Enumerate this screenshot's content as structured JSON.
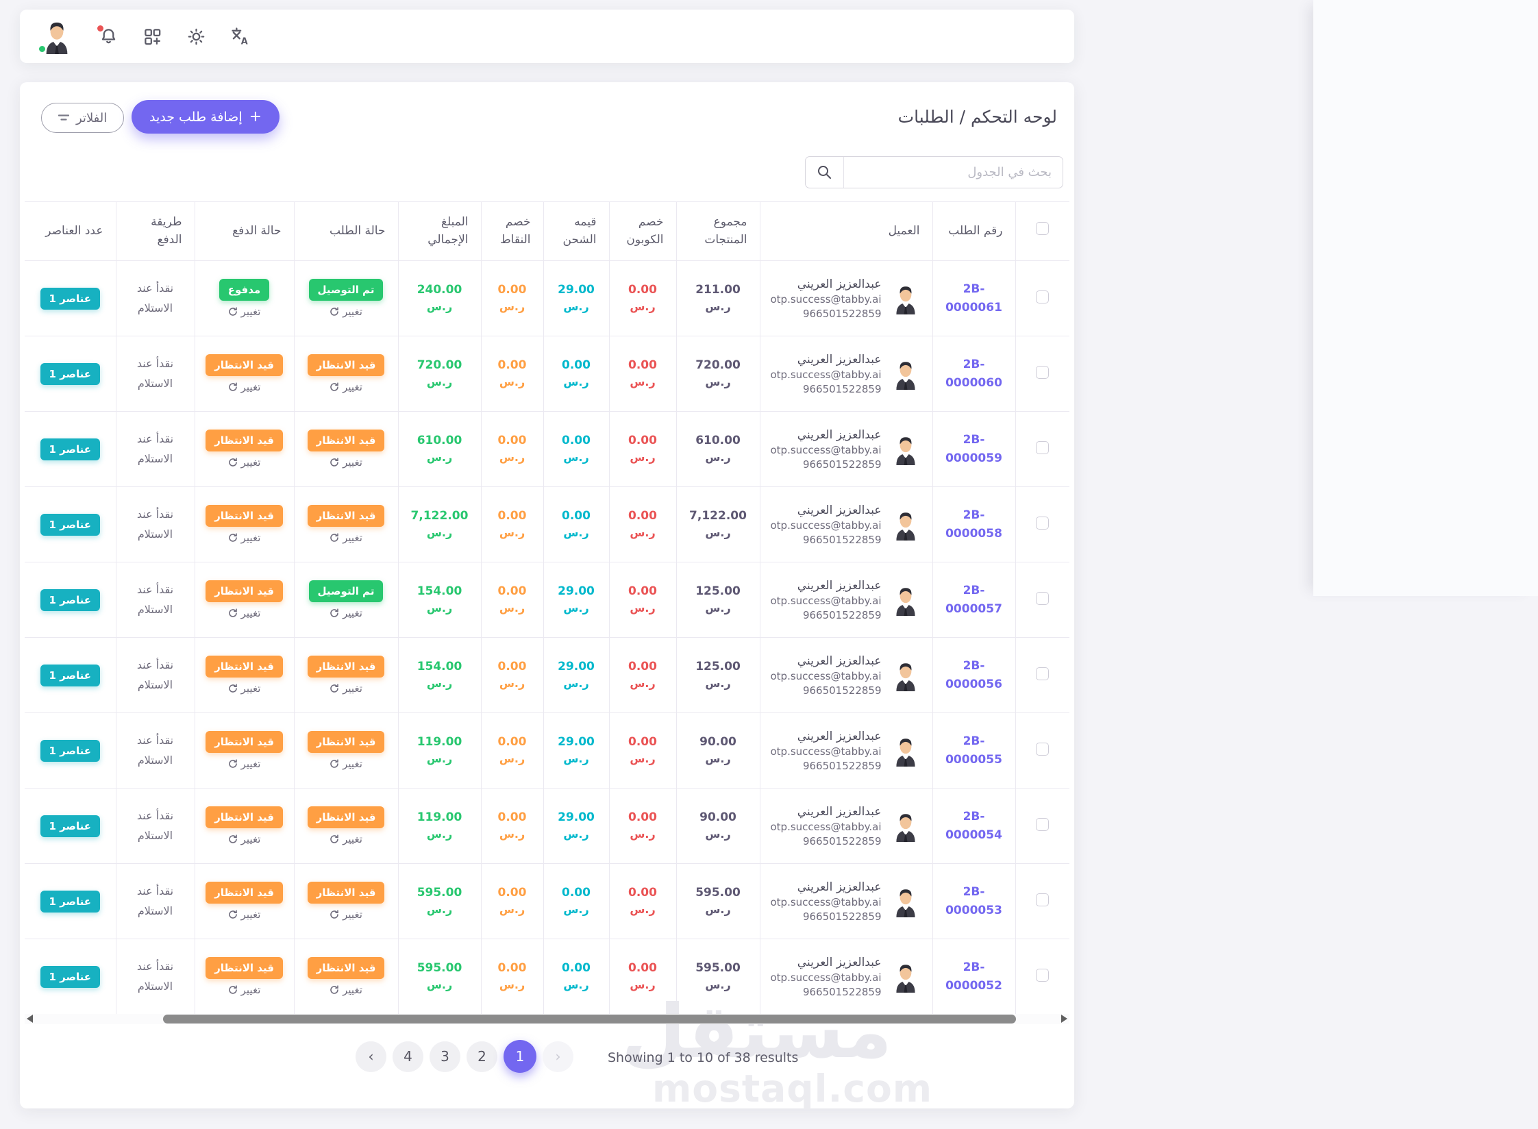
{
  "topbar": {
    "icons": [
      "user-avatar",
      "bell",
      "apps-grid",
      "sun",
      "translate"
    ]
  },
  "page": {
    "title": "لوحه التحكم / الطلبات",
    "filter_label": "الفلاتر",
    "add_button_label": "إضافة طلب جديد",
    "add_button_plus": "+"
  },
  "search": {
    "placeholder": "بحث في الجدول"
  },
  "table": {
    "columns": {
      "order_no": "رقم الطلب",
      "customer": "العميل",
      "products_total": "مجموع المنتجات",
      "coupon_discount": "خصم الكوبون",
      "shipping": "قيمه الشحن",
      "points_discount": "خصم النقاط",
      "total": "المبلغ الإجمالي",
      "order_status": "حالة الطلب",
      "payment_status": "حالة الدفع",
      "payment_method": "طريقة الدفع",
      "items": "عدد العناصر"
    },
    "statuses": {
      "delivered": "تم التوصيل",
      "pending": "قيد الانتظار",
      "paid": "مدفوع"
    },
    "change_label": "تغيير",
    "currency": "ر.س",
    "items_badge": "1 عناصر",
    "payment_method_value": "نقدأ عند الاستلام",
    "customer": {
      "name": "عبدالعزيز العريني",
      "email": "otp.success@tabby.ai",
      "phone": "966501522859"
    },
    "rows": [
      {
        "order_no": "2B-0000061",
        "products_total": "211.00",
        "coupon_discount": "0.00",
        "shipping": "29.00",
        "points_discount": "0.00",
        "total": "240.00",
        "order_status": "delivered",
        "payment_status": "paid"
      },
      {
        "order_no": "2B-0000060",
        "products_total": "720.00",
        "coupon_discount": "0.00",
        "shipping": "0.00",
        "points_discount": "0.00",
        "total": "720.00",
        "order_status": "pending",
        "payment_status": "pending"
      },
      {
        "order_no": "2B-0000059",
        "products_total": "610.00",
        "coupon_discount": "0.00",
        "shipping": "0.00",
        "points_discount": "0.00",
        "total": "610.00",
        "order_status": "pending",
        "payment_status": "pending"
      },
      {
        "order_no": "2B-0000058",
        "products_total": "7,122.00",
        "coupon_discount": "0.00",
        "shipping": "0.00",
        "points_discount": "0.00",
        "total": "7,122.00",
        "order_status": "pending",
        "payment_status": "pending"
      },
      {
        "order_no": "2B-0000057",
        "products_total": "125.00",
        "coupon_discount": "0.00",
        "shipping": "29.00",
        "points_discount": "0.00",
        "total": "154.00",
        "order_status": "delivered",
        "payment_status": "pending"
      },
      {
        "order_no": "2B-0000056",
        "products_total": "125.00",
        "coupon_discount": "0.00",
        "shipping": "29.00",
        "points_discount": "0.00",
        "total": "154.00",
        "order_status": "pending",
        "payment_status": "pending"
      },
      {
        "order_no": "2B-0000055",
        "products_total": "90.00",
        "coupon_discount": "0.00",
        "shipping": "29.00",
        "points_discount": "0.00",
        "total": "119.00",
        "order_status": "pending",
        "payment_status": "pending"
      },
      {
        "order_no": "2B-0000054",
        "products_total": "90.00",
        "coupon_discount": "0.00",
        "shipping": "29.00",
        "points_discount": "0.00",
        "total": "119.00",
        "order_status": "pending",
        "payment_status": "pending"
      },
      {
        "order_no": "2B-0000053",
        "products_total": "595.00",
        "coupon_discount": "0.00",
        "shipping": "0.00",
        "points_discount": "0.00",
        "total": "595.00",
        "order_status": "pending",
        "payment_status": "pending"
      },
      {
        "order_no": "2B-0000052",
        "products_total": "595.00",
        "coupon_discount": "0.00",
        "shipping": "0.00",
        "points_discount": "0.00",
        "total": "595.00",
        "order_status": "pending",
        "payment_status": "pending"
      }
    ]
  },
  "pagination": {
    "prev": "‹",
    "next": "›",
    "pages": [
      "4",
      "3",
      "2",
      "1"
    ],
    "active": "1",
    "summary": "Showing 1 to 10 of 38 results"
  },
  "watermark": {
    "ar": "مستقل",
    "en": "mostaql.com"
  },
  "colors": {
    "primary": "#7367f0",
    "success": "#28c76f",
    "warning": "#ff9f43",
    "danger": "#ea5455",
    "info": "#17b1c1",
    "text_dark": "#5e5873"
  }
}
